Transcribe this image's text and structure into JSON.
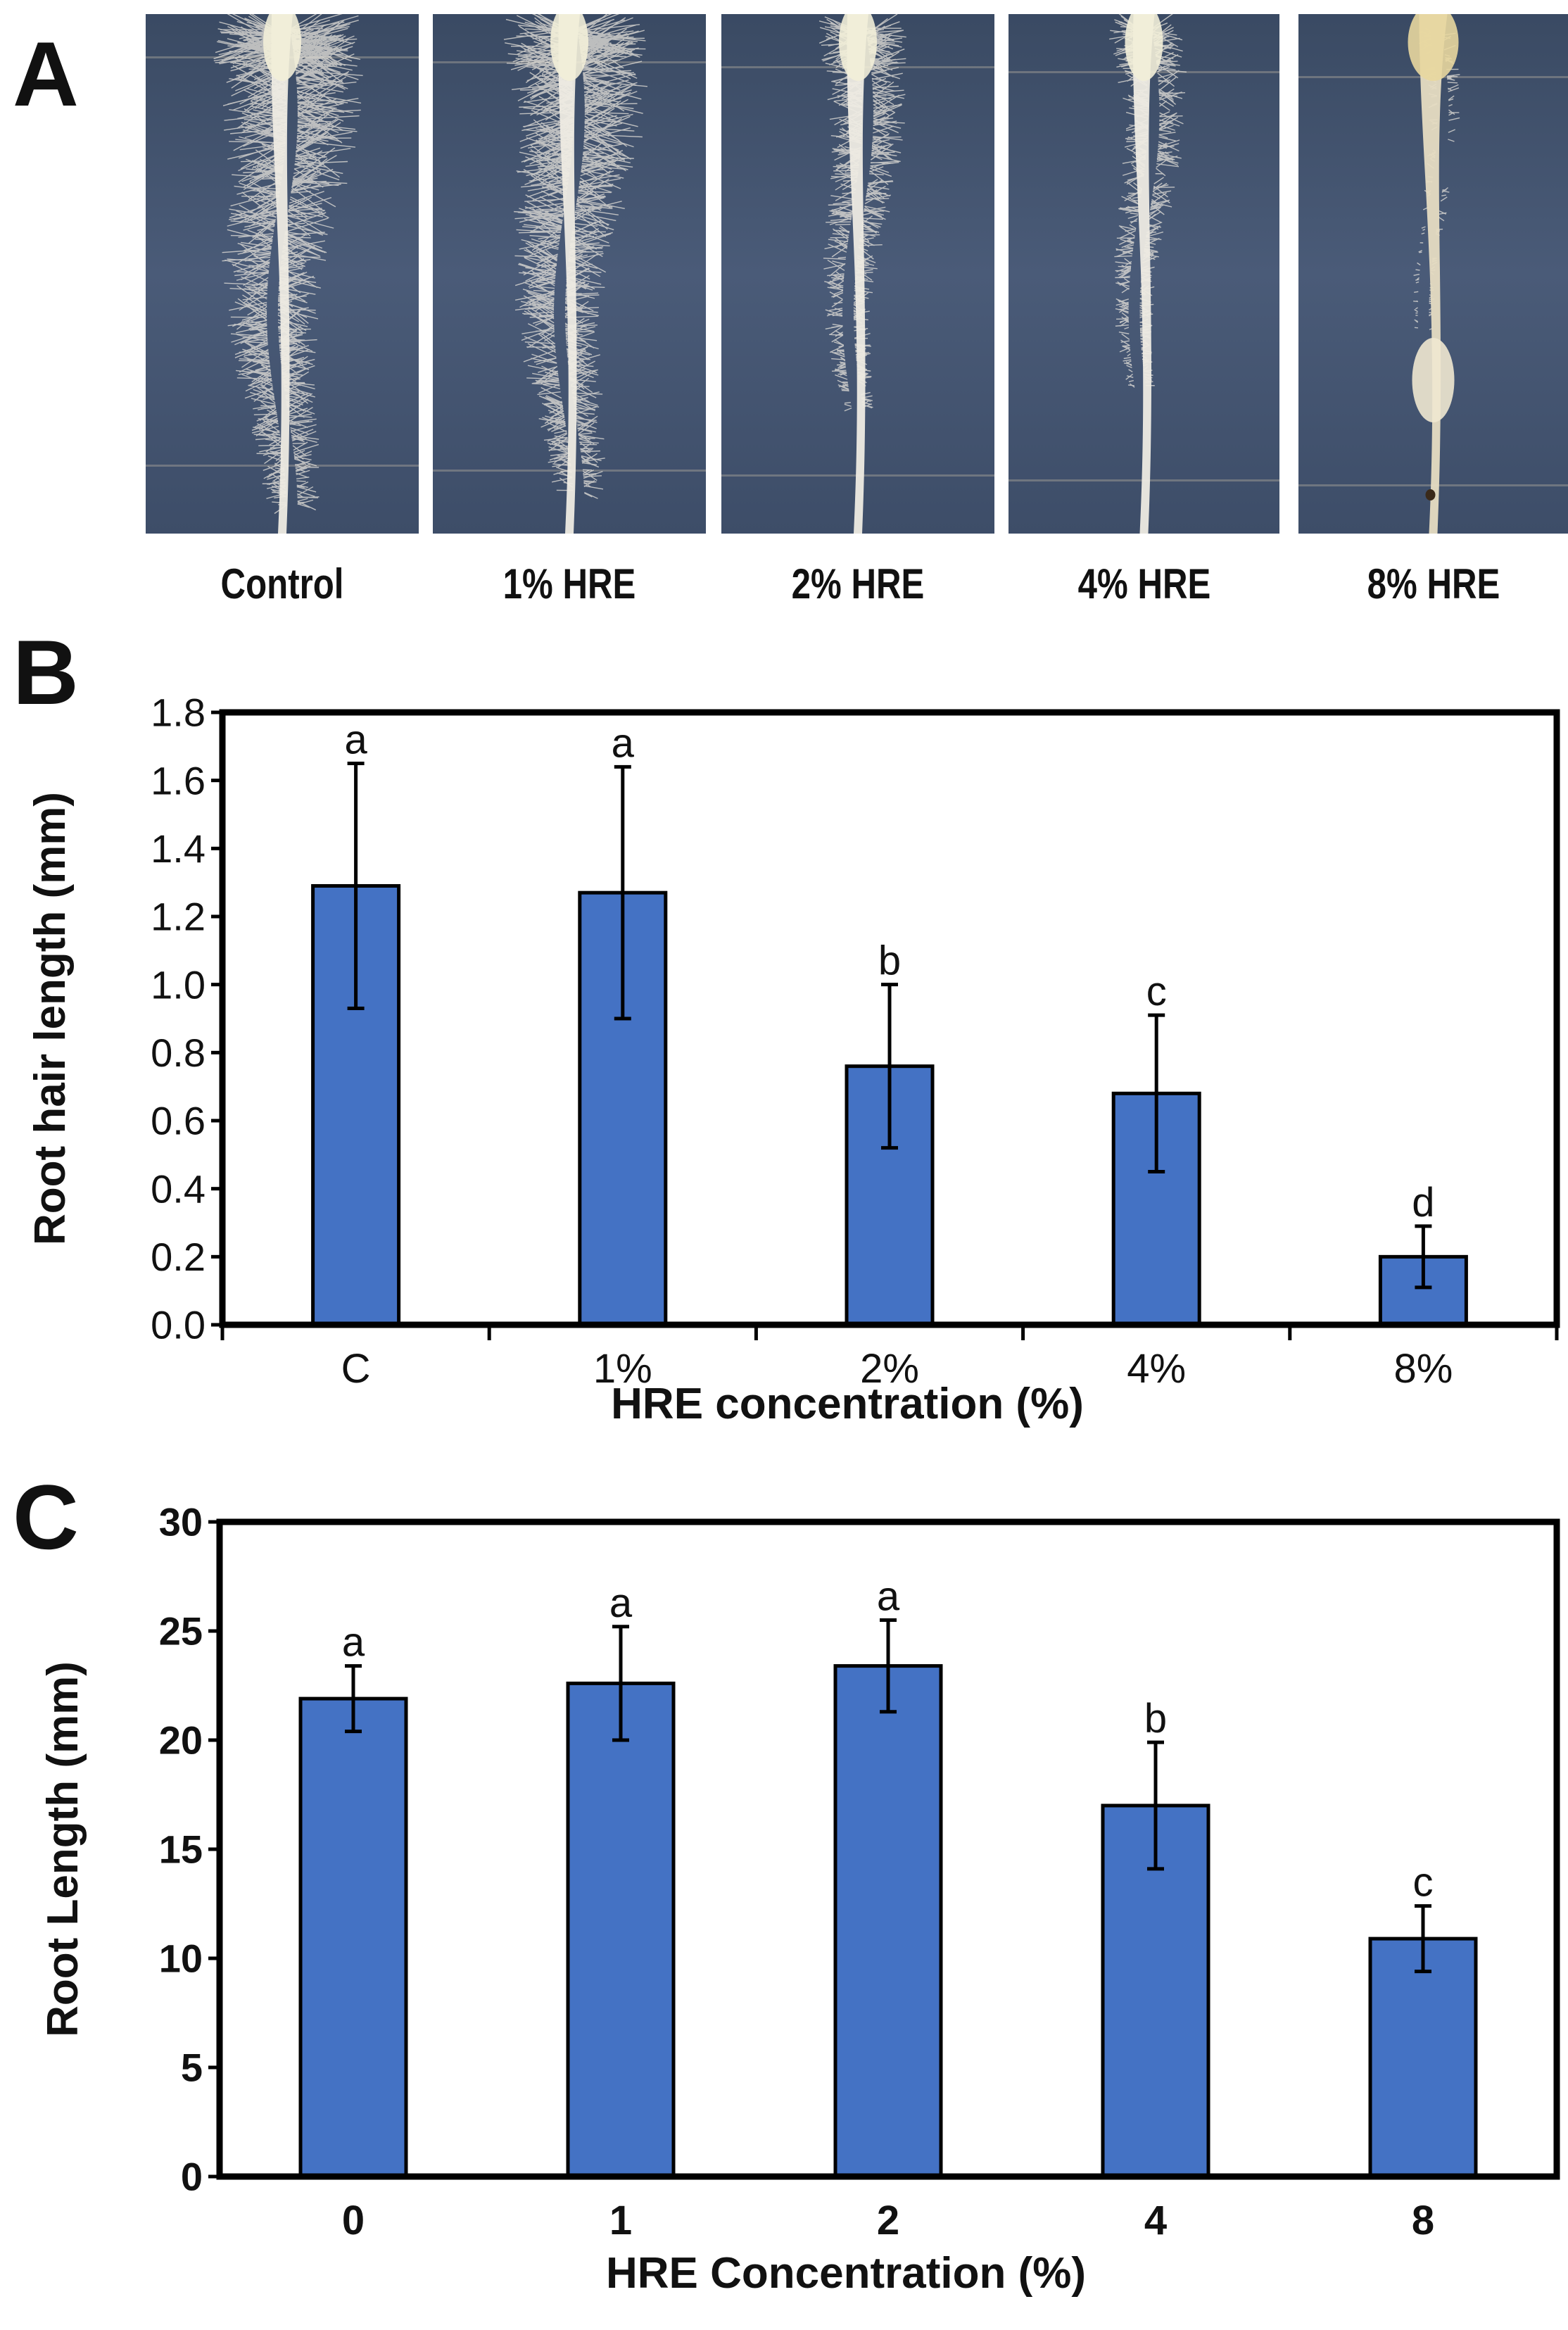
{
  "panels": {
    "a": {
      "letter": "A",
      "photos": [
        {
          "label": "Control",
          "hair_density": 1.0,
          "hair_extent": 1.0
        },
        {
          "label": "1% HRE",
          "hair_density": 0.95,
          "hair_extent": 0.95
        },
        {
          "label": "2% HRE",
          "hair_density": 0.6,
          "hair_extent": 0.55
        },
        {
          "label": "4% HRE",
          "hair_density": 0.5,
          "hair_extent": 0.45
        },
        {
          "label": "8% HRE",
          "hair_density": 0.15,
          "hair_extent": 0.2
        }
      ]
    },
    "b": {
      "letter": "B"
    },
    "c": {
      "letter": "C"
    }
  },
  "colors": {
    "bar": "#4472c4",
    "axis": "#000000",
    "text": "#111111"
  },
  "chart_data": [
    {
      "id": "B",
      "type": "bar",
      "title": "",
      "xlabel": "HRE concentration (%)",
      "ylabel": "Root hair length (mm)",
      "categories": [
        "C",
        "1%",
        "2%",
        "4%",
        "8%"
      ],
      "values": [
        1.29,
        1.27,
        0.76,
        0.68,
        0.2
      ],
      "errors": [
        0.36,
        0.37,
        0.24,
        0.23,
        0.09
      ],
      "letters": [
        "a",
        "a",
        "b",
        "c",
        "d"
      ],
      "ylim": [
        0,
        1.8
      ],
      "yticks": [
        "0.0",
        "0.2",
        "0.4",
        "0.6",
        "0.8",
        "1.0",
        "1.2",
        "1.4",
        "1.6",
        "1.8"
      ],
      "grid": false
    },
    {
      "id": "C",
      "type": "bar",
      "title": "",
      "xlabel": "HRE Concentration (%)",
      "ylabel": "Root Length (mm)",
      "categories": [
        "0",
        "1",
        "2",
        "4",
        "8"
      ],
      "values": [
        21.9,
        22.6,
        23.4,
        17.0,
        10.9
      ],
      "errors": [
        1.5,
        2.6,
        2.1,
        2.9,
        1.5
      ],
      "letters": [
        "a",
        "a",
        "a",
        "b",
        "c"
      ],
      "ylim": [
        0,
        30
      ],
      "yticks": [
        "0",
        "5",
        "10",
        "15",
        "20",
        "25",
        "30"
      ],
      "grid": false
    }
  ]
}
